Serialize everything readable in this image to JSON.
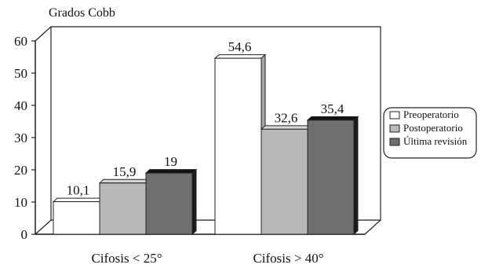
{
  "chart_data": {
    "type": "bar",
    "title": "",
    "ylabel": "Grados Cobb",
    "xlabel": "",
    "ylim": [
      0,
      60
    ],
    "yticks": [
      0,
      10,
      20,
      30,
      40,
      50,
      60
    ],
    "categories": [
      "Cifosis < 25°",
      "Cifosis > 40°"
    ],
    "series": [
      {
        "name": "Preoperatorio",
        "values": [
          10.1,
          54.6
        ],
        "labels": [
          "10,1",
          "54,6"
        ],
        "color": "#ffffff"
      },
      {
        "name": "Postoperatorio",
        "values": [
          15.9,
          32.6
        ],
        "labels": [
          "15,9",
          "32,6"
        ],
        "color": "#b9b9b9"
      },
      {
        "name": "Última revisión",
        "values": [
          19,
          35.4
        ],
        "labels": [
          "19",
          "35,4"
        ],
        "color": "#6f6f6f"
      }
    ],
    "legend_position": "right",
    "grid": false,
    "three_d": true
  }
}
